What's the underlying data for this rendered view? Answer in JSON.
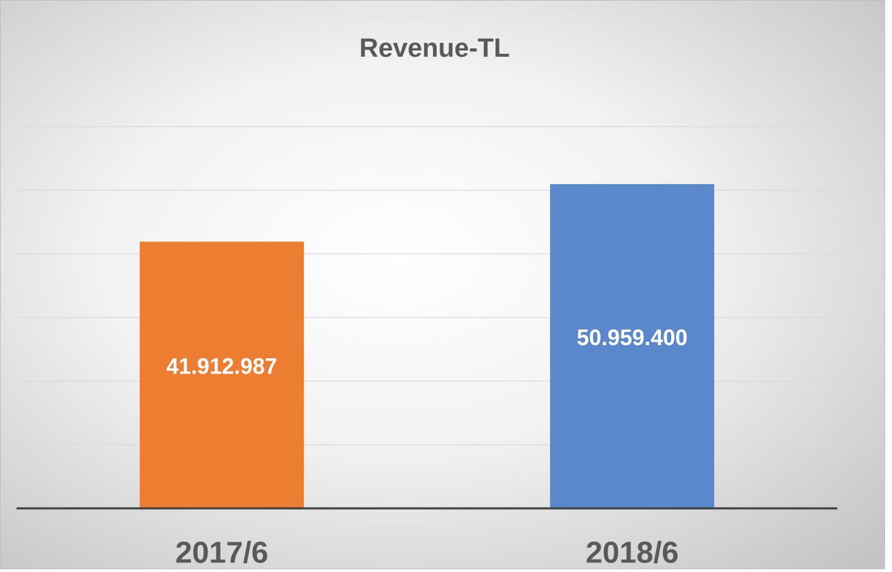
{
  "chart_data": {
    "type": "bar",
    "title": "Revenue-TL",
    "categories": [
      "2017/6",
      "2018/6"
    ],
    "values": [
      41912987,
      50959400
    ],
    "value_labels": [
      "41.912.987",
      "50.959.400"
    ],
    "colors": [
      "#ed7d31",
      "#5b87cc"
    ],
    "ylim": [
      0,
      60000000
    ],
    "yticks": [
      0,
      10000000,
      20000000,
      30000000,
      40000000,
      50000000,
      60000000
    ],
    "grid": true
  }
}
